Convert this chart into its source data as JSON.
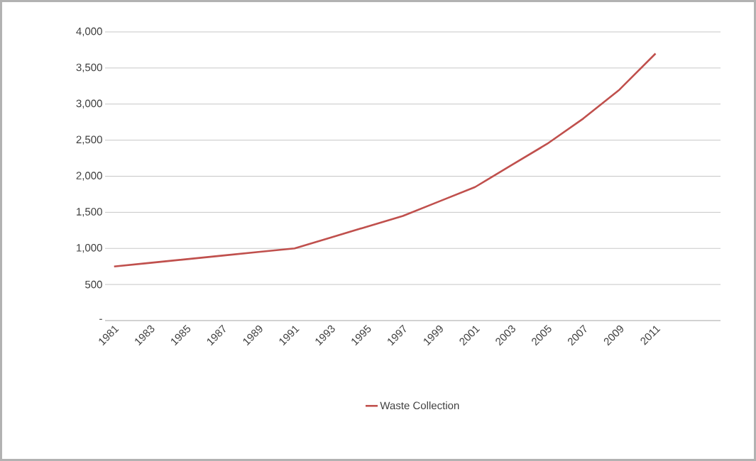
{
  "chart_data": {
    "type": "line",
    "x": [
      1981,
      1983,
      1985,
      1987,
      1989,
      1991,
      1993,
      1995,
      1997,
      1999,
      2001,
      2003,
      2005,
      2007,
      2009,
      2011
    ],
    "series": [
      {
        "name": "Waste Collection",
        "color": "#c0504d",
        "values": [
          750,
          800,
          850,
          900,
          950,
          1000,
          1150,
          1300,
          1450,
          1650,
          1850,
          2150,
          2450,
          2800,
          3200,
          3700
        ]
      }
    ],
    "xlim": [
      1980.5,
      2014.6
    ],
    "xticks": [
      1981,
      1983,
      1985,
      1987,
      1989,
      1991,
      1993,
      1995,
      1997,
      1999,
      2001,
      2003,
      2005,
      2007,
      2009,
      2011
    ],
    "ylim": [
      0,
      4000
    ],
    "yticks": [
      {
        "value": 0,
        "label": "-"
      },
      {
        "value": 500,
        "label": "500"
      },
      {
        "value": 1000,
        "label": "1,000"
      },
      {
        "value": 1500,
        "label": "1,500"
      },
      {
        "value": 2000,
        "label": "2,000"
      },
      {
        "value": 2500,
        "label": "2,500"
      },
      {
        "value": 3000,
        "label": "3,000"
      },
      {
        "value": 3500,
        "label": "3,500"
      },
      {
        "value": 4000,
        "label": "4,000"
      }
    ],
    "grid": "y",
    "legend": "bottom",
    "marker": "none",
    "line_style": "solid"
  }
}
